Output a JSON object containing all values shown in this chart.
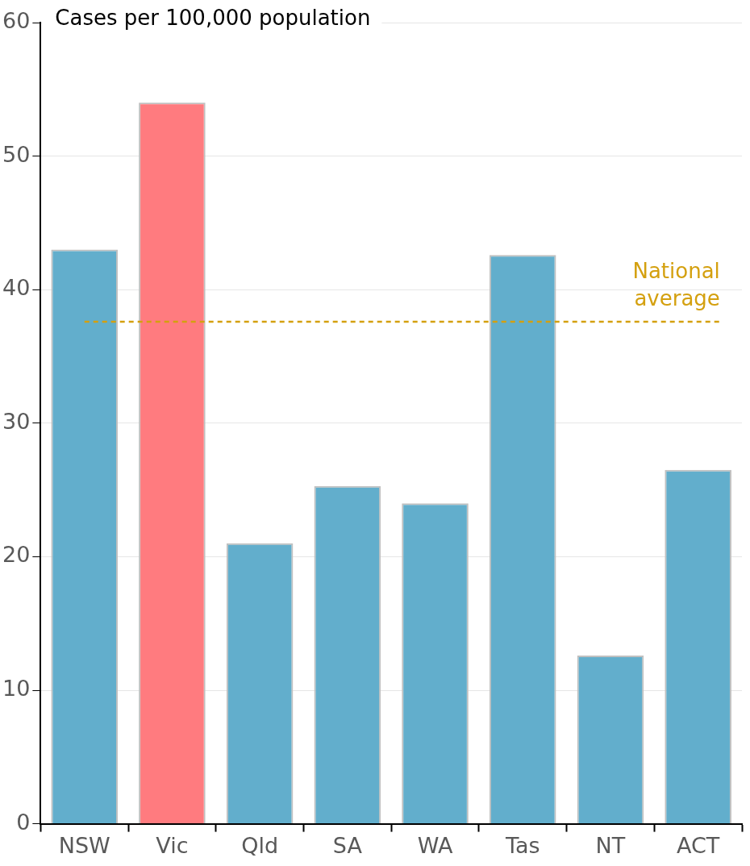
{
  "chart_data": {
    "type": "bar",
    "ylabel": "Cases per 100,000 population",
    "categories": [
      "NSW",
      "Vic",
      "Qld",
      "SA",
      "WA",
      "Tas",
      "NT",
      "ACT"
    ],
    "values": [
      43,
      54,
      21,
      25.3,
      24,
      42.6,
      12.6,
      26.5
    ],
    "colors": [
      "#62aecc",
      "#ff7b7f",
      "#62aecc",
      "#62aecc",
      "#62aecc",
      "#62aecc",
      "#62aecc",
      "#62aecc"
    ],
    "ylim": [
      0,
      60
    ],
    "yticks": [
      0,
      10,
      20,
      30,
      40,
      50,
      60
    ],
    "grid": "y",
    "legend": false,
    "ref_lines": [
      {
        "axis": "y",
        "value": 37.6,
        "label": "National average",
        "color": "#d4a00f",
        "line_style": "dashed"
      }
    ]
  }
}
